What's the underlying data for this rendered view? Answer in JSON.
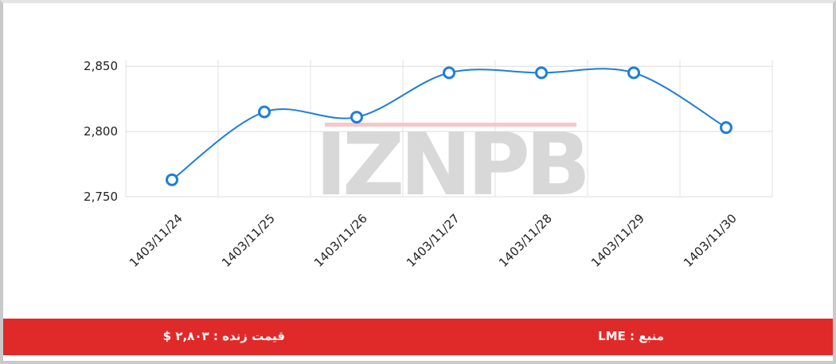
{
  "chart_data": {
    "type": "line",
    "watermark": "IZNPB",
    "categories": [
      "1403/11/24",
      "1403/11/25",
      "1403/11/26",
      "1403/11/27",
      "1403/11/28",
      "1403/11/29",
      "1403/11/30"
    ],
    "series": [
      {
        "color": "#1e7fd6",
        "values": [
          2763,
          2815,
          2811,
          2845,
          2845,
          2845,
          2803
        ]
      }
    ],
    "ylim": [
      2750,
      2855
    ],
    "yticks": [
      {
        "value": 2750,
        "label": "2,750"
      },
      {
        "value": 2800,
        "label": "2,800"
      },
      {
        "value": 2850,
        "label": "2,850"
      }
    ],
    "grid": true
  },
  "footer": {
    "price": "قیمت زنده : ۲,۸۰۳ $",
    "source": "منبع : LME"
  }
}
